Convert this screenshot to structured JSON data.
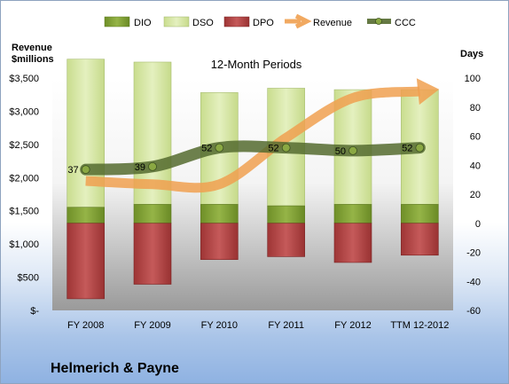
{
  "chart_data": {
    "type": "bar",
    "title": "12-Month Periods",
    "company": "Helmerich & Payne",
    "left_axis_title": [
      "Revenue",
      "$millions"
    ],
    "right_axis_title": "Days",
    "categories": [
      "FY 2008",
      "FY 2009",
      "FY 2010",
      "FY 2011",
      "FY 2012",
      "TTM 12-2012"
    ],
    "left_axis": {
      "min": 0,
      "max": 3500,
      "step": 500,
      "tick_labels": [
        "$-",
        "$500",
        "$1,000",
        "$1,500",
        "$2,000",
        "$2,500",
        "$3,000",
        "$3,500"
      ]
    },
    "right_axis": {
      "min": -60,
      "max": 100,
      "step": 20,
      "tick_labels": [
        "-60",
        "-40",
        "-20",
        "0",
        "20",
        "40",
        "60",
        "80",
        "100"
      ]
    },
    "legend": {
      "position": "top",
      "entries": [
        "DIO",
        "DSO",
        "DPO",
        "Revenue",
        "CCC"
      ]
    },
    "series": [
      {
        "name": "DIO",
        "axis": "right",
        "kind": "stacked-bar",
        "color": "#7a9a2e",
        "values": [
          11,
          13,
          13,
          12,
          13,
          13
        ]
      },
      {
        "name": "DSO",
        "axis": "right",
        "kind": "stacked-bar",
        "color": "#d6e6a6",
        "values": [
          102,
          98,
          77,
          81,
          79,
          79
        ]
      },
      {
        "name": "DPO",
        "axis": "right",
        "kind": "negative-bar",
        "color": "#b34545",
        "values": [
          -52,
          -42,
          -25,
          -23,
          -27,
          -22
        ]
      },
      {
        "name": "Revenue",
        "axis": "left",
        "kind": "arrow-line",
        "color": "#f0a050",
        "values": [
          1950,
          1900,
          1900,
          2600,
          3200,
          3300
        ]
      },
      {
        "name": "CCC",
        "axis": "right",
        "kind": "line",
        "color": "#556b2f",
        "values": [
          37,
          39,
          52,
          52,
          50,
          52
        ],
        "labels": [
          "37",
          "39",
          "52",
          "52",
          "50",
          "52"
        ]
      }
    ],
    "grid": false
  }
}
